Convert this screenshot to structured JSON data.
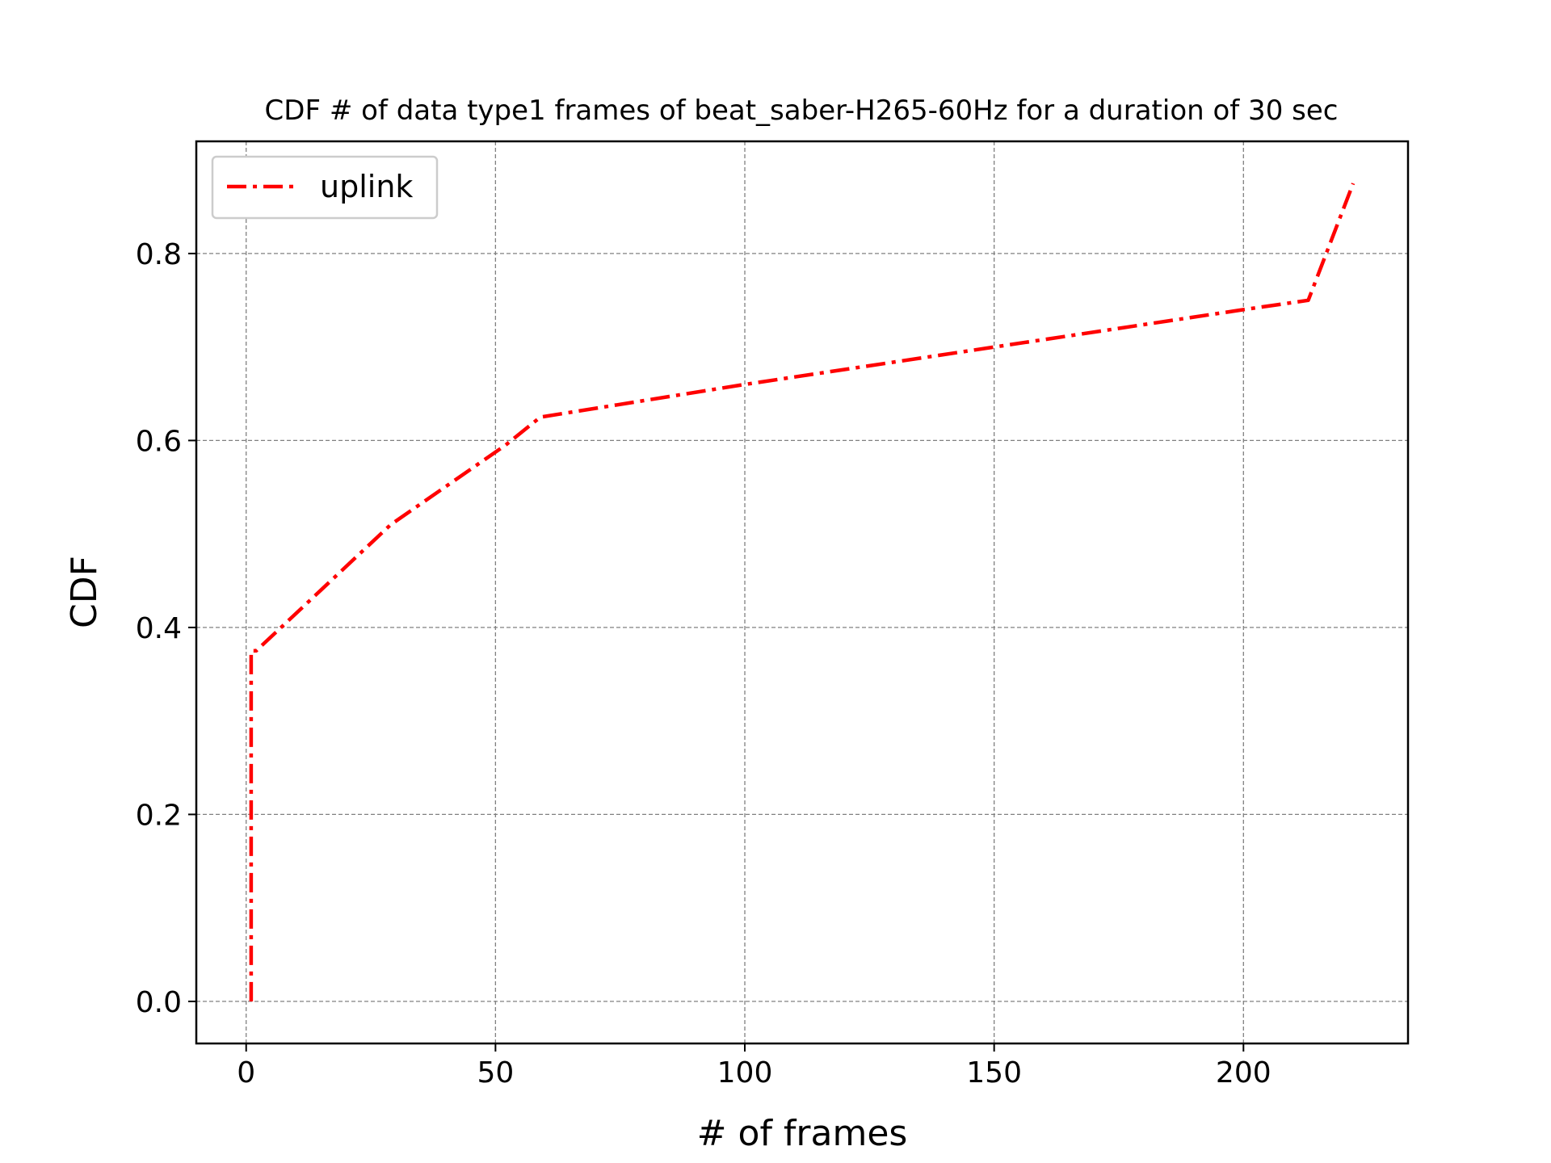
{
  "chart_data": {
    "type": "line",
    "title": "CDF # of data type1 frames of beat_saber-H265-60Hz for a duration of 30 sec",
    "xlabel": "# of frames",
    "ylabel": "CDF",
    "xlim": [
      -10,
      233
    ],
    "ylim": [
      -0.045,
      0.92
    ],
    "xticks": [
      0,
      50,
      100,
      150,
      200
    ],
    "xtick_labels": [
      "0",
      "50",
      "100",
      "150",
      "200"
    ],
    "yticks": [
      0.0,
      0.2,
      0.4,
      0.6,
      0.8
    ],
    "ytick_labels": [
      "0.0",
      "0.2",
      "0.4",
      "0.6",
      "0.8"
    ],
    "grid": true,
    "legend_position": "top-left",
    "series": [
      {
        "name": "uplink",
        "color": "#ff0000",
        "line_style": "dash-dot",
        "x": [
          1,
          1,
          2,
          29,
          52,
          59,
          100,
          150,
          200,
          213,
          222
        ],
        "y": [
          0.0,
          0.375,
          0.375,
          0.51,
          0.595,
          0.625,
          0.66,
          0.7,
          0.74,
          0.75,
          0.875
        ]
      }
    ]
  }
}
